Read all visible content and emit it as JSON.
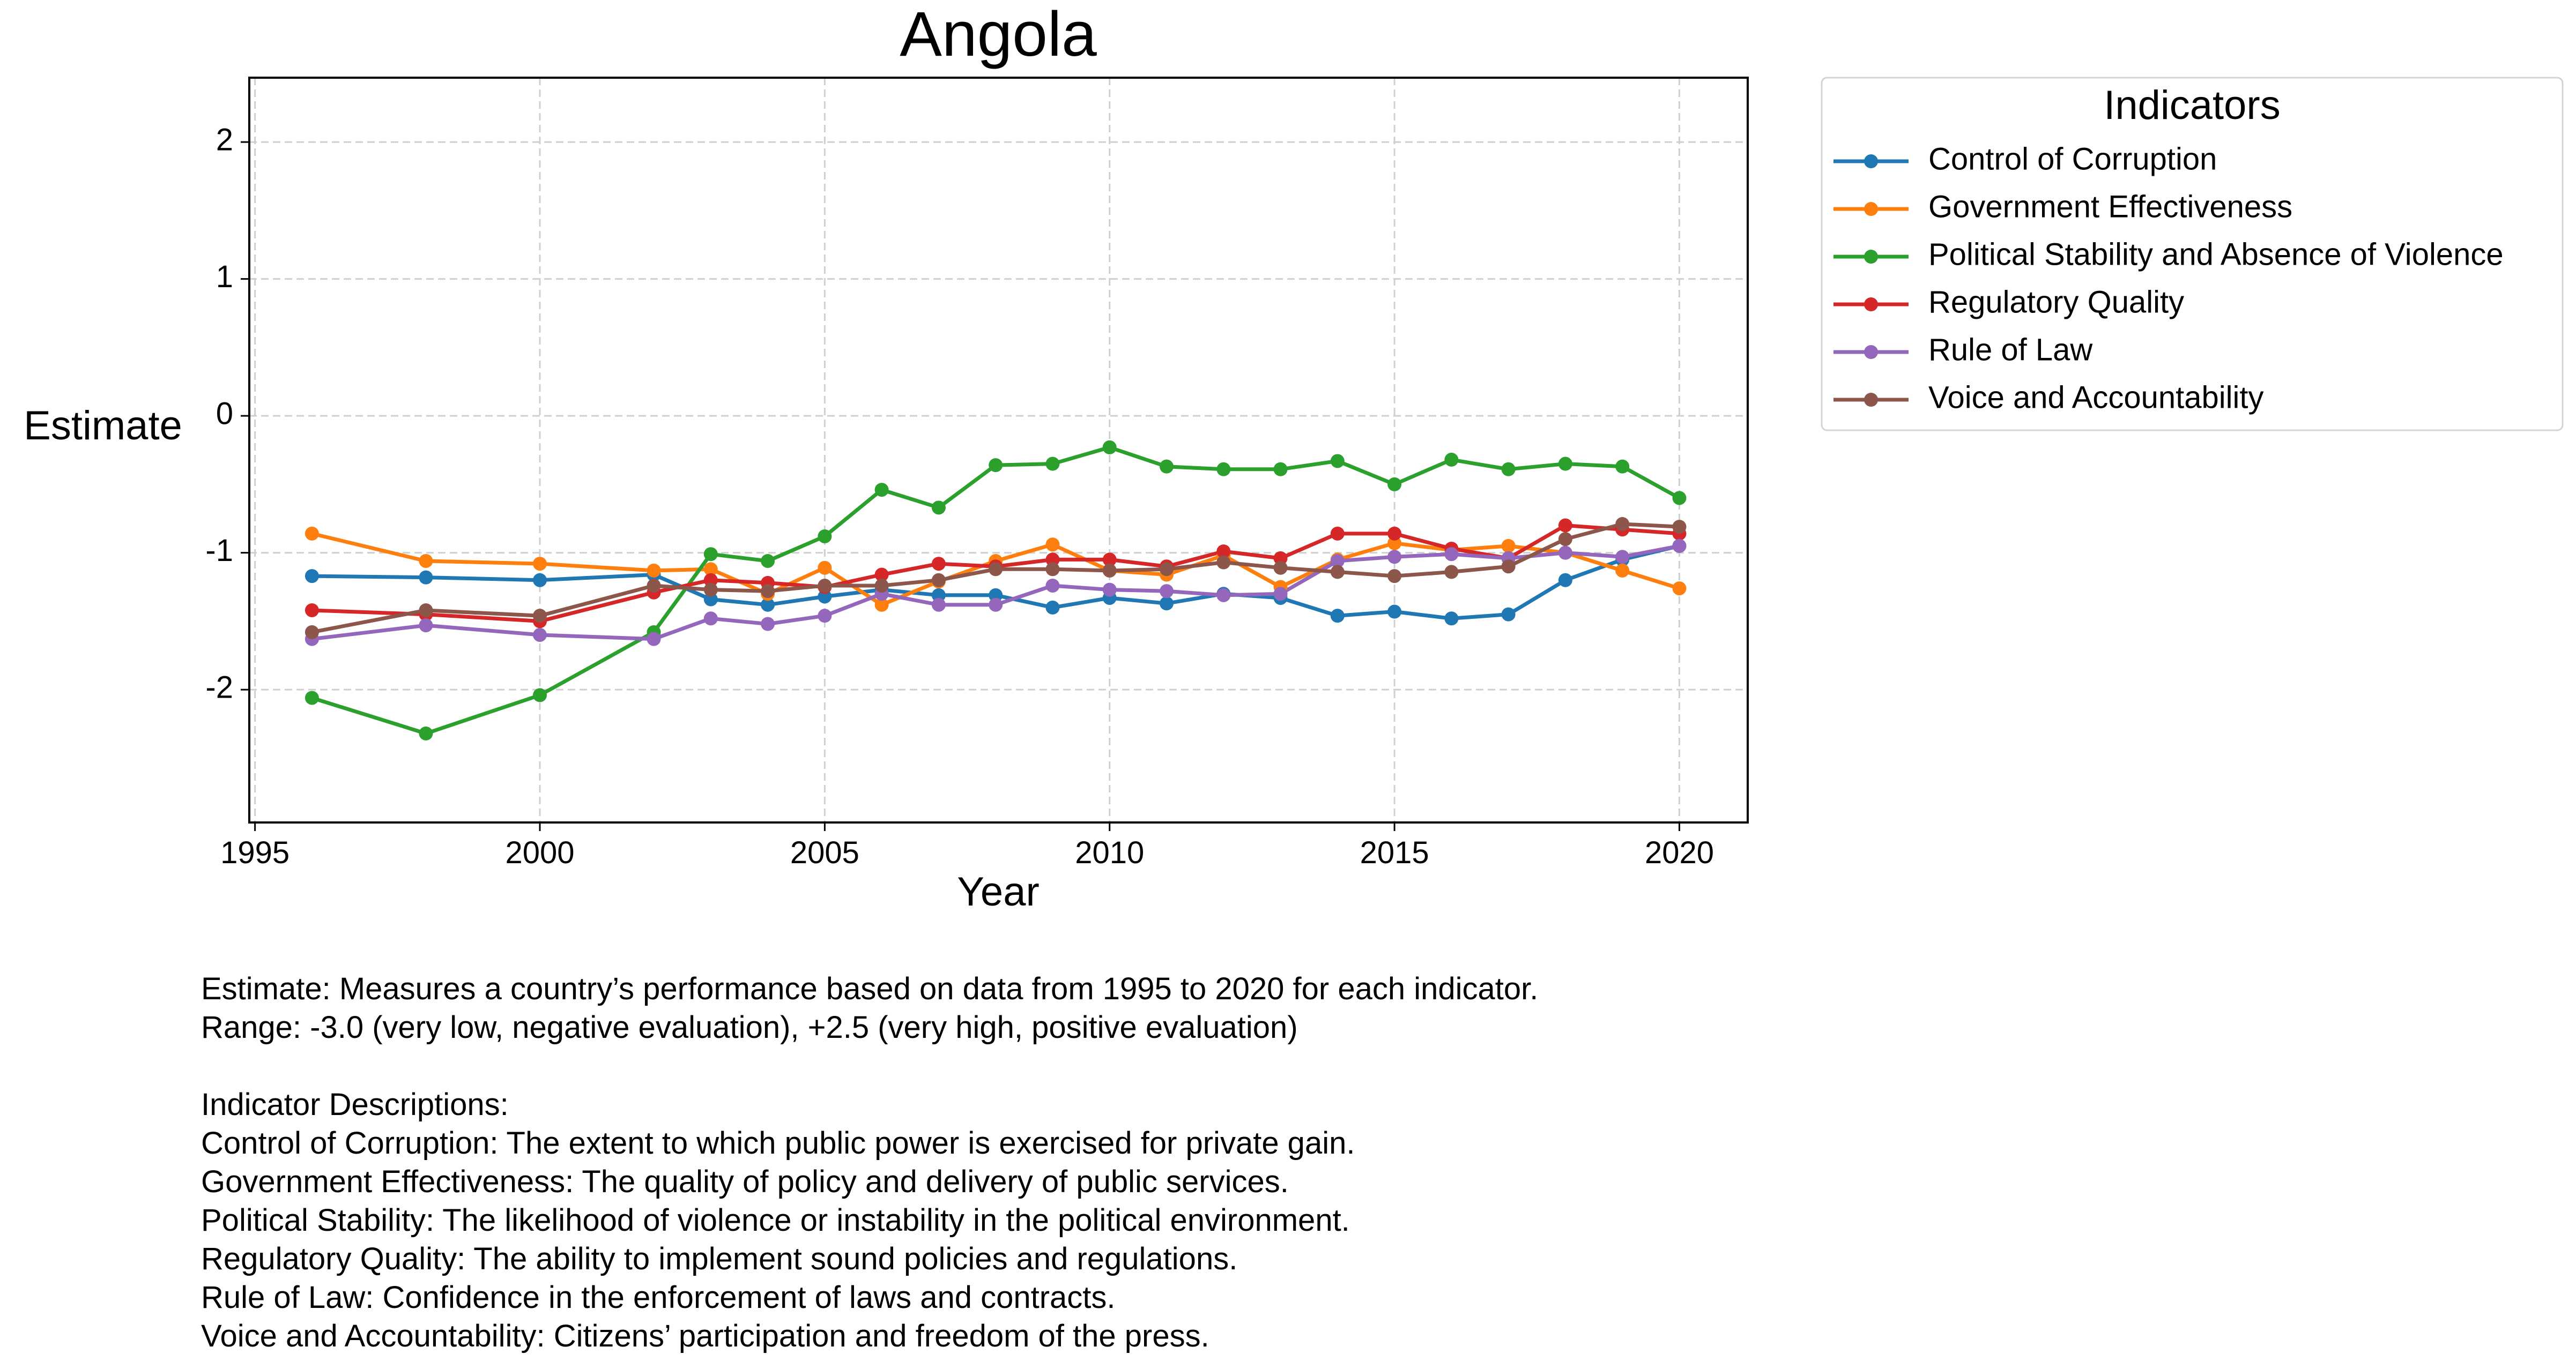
{
  "chart_data": {
    "type": "line",
    "title": "Angola",
    "xlabel": "Year",
    "ylabel": "Estimate",
    "xlim": [
      1994.9,
      2021.2
    ],
    "ylim": [
      -2.97,
      2.47
    ],
    "xticks": [
      "1995",
      "2000",
      "2005",
      "2010",
      "2015",
      "2020"
    ],
    "yticks": [
      "2",
      "1",
      "0",
      "-1",
      "-2"
    ],
    "grid": true,
    "legend": {
      "title": "Indicators",
      "placement": "outside-top-right"
    },
    "x": [
      1996,
      1998,
      2000,
      2002,
      2003,
      2004,
      2005,
      2006,
      2007,
      2008,
      2009,
      2010,
      2011,
      2012,
      2013,
      2014,
      2015,
      2016,
      2017,
      2018,
      2019,
      2020
    ],
    "series": [
      {
        "name": "Control of Corruption",
        "color": "#1f77b4",
        "values": [
          -1.17,
          -1.18,
          -1.2,
          -1.16,
          -1.34,
          -1.38,
          -1.32,
          -1.27,
          -1.31,
          -1.31,
          -1.4,
          -1.33,
          -1.37,
          -1.3,
          -1.33,
          -1.46,
          -1.43,
          -1.48,
          -1.45,
          -1.2,
          -1.05,
          -0.95
        ]
      },
      {
        "name": "Government Effectiveness",
        "color": "#ff7f0e",
        "values": [
          -0.86,
          -1.06,
          -1.08,
          -1.13,
          -1.12,
          -1.3,
          -1.11,
          -1.38,
          -1.21,
          -1.06,
          -0.94,
          -1.13,
          -1.16,
          -1.02,
          -1.25,
          -1.05,
          -0.93,
          -0.98,
          -0.95,
          -1.0,
          -1.13,
          -1.26
        ]
      },
      {
        "name": "Political Stability and Absence of Violence",
        "color": "#2ca02c",
        "values": [
          -2.06,
          -2.32,
          -2.04,
          -1.58,
          -1.01,
          -1.06,
          -0.88,
          -0.54,
          -0.67,
          -0.36,
          -0.35,
          -0.23,
          -0.37,
          -0.39,
          -0.39,
          -0.33,
          -0.5,
          -0.32,
          -0.39,
          -0.35,
          -0.37,
          -0.6
        ]
      },
      {
        "name": "Regulatory Quality",
        "color": "#d62728",
        "values": [
          -1.42,
          -1.45,
          -1.5,
          -1.29,
          -1.2,
          -1.22,
          -1.25,
          -1.16,
          -1.08,
          -1.1,
          -1.05,
          -1.05,
          -1.1,
          -0.99,
          -1.04,
          -0.86,
          -0.86,
          -0.97,
          -1.04,
          -0.8,
          -0.83,
          -0.86
        ]
      },
      {
        "name": "Rule of Law",
        "color": "#9467bd",
        "values": [
          -1.63,
          -1.53,
          -1.6,
          -1.63,
          -1.48,
          -1.52,
          -1.46,
          -1.3,
          -1.38,
          -1.38,
          -1.24,
          -1.27,
          -1.28,
          -1.31,
          -1.3,
          -1.06,
          -1.03,
          -1.01,
          -1.04,
          -1.0,
          -1.03,
          -0.95
        ]
      },
      {
        "name": "Voice and Accountability",
        "color": "#8c564b",
        "values": [
          -1.58,
          -1.42,
          -1.46,
          -1.24,
          -1.27,
          -1.28,
          -1.24,
          -1.24,
          -1.2,
          -1.12,
          -1.12,
          -1.13,
          -1.12,
          -1.07,
          -1.11,
          -1.14,
          -1.17,
          -1.14,
          -1.1,
          -0.9,
          -0.79,
          -0.81
        ]
      }
    ]
  },
  "notes": {
    "line1": "Estimate: Measures a country’s performance based on data from 1995 to 2020 for each indicator.",
    "line2": "Range: -3.0 (very low, negative evaluation), +2.5 (very high, positive evaluation)",
    "heading": "Indicator Descriptions:",
    "desc1": "Control of Corruption: The extent to which public power is exercised for private gain.",
    "desc2": "Government Effectiveness: The quality of policy and delivery of public services.",
    "desc3": "Political Stability: The likelihood of violence or instability in the political environment.",
    "desc4": "Regulatory Quality: The ability to implement sound policies and regulations.",
    "desc5": "Rule of Law: Confidence in the enforcement of laws and contracts.",
    "desc6": "Voice and Accountability: Citizens’ participation and freedom of the press."
  }
}
